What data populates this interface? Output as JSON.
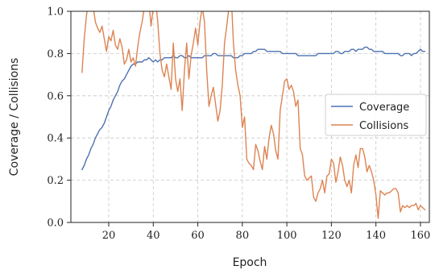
{
  "chart_data": {
    "type": "line",
    "xlabel": "Epoch",
    "ylabel": "Coverage / Collisions",
    "xlim": [
      3,
      164
    ],
    "ylim": [
      0.0,
      1.0
    ],
    "xticks": [
      20,
      40,
      60,
      80,
      100,
      120,
      140,
      160
    ],
    "yticks": [
      0.0,
      0.2,
      0.4,
      0.6,
      0.8,
      1.0
    ],
    "xtick_labels": [
      "20",
      "40",
      "60",
      "80",
      "100",
      "120",
      "140",
      "160"
    ],
    "ytick_labels": [
      "0.0",
      "0.2",
      "0.4",
      "0.6",
      "0.8",
      "1.0"
    ],
    "grid": true,
    "legend_position": "center-right",
    "series": [
      {
        "name": "Coverage",
        "color": "#4c72b0",
        "points": [
          [
            8,
            0.25
          ],
          [
            9,
            0.27
          ],
          [
            10,
            0.3
          ],
          [
            11,
            0.32
          ],
          [
            12,
            0.35
          ],
          [
            13,
            0.37
          ],
          [
            14,
            0.4
          ],
          [
            15,
            0.42
          ],
          [
            16,
            0.44
          ],
          [
            17,
            0.45
          ],
          [
            18,
            0.47
          ],
          [
            19,
            0.5
          ],
          [
            20,
            0.53
          ],
          [
            21,
            0.55
          ],
          [
            22,
            0.58
          ],
          [
            23,
            0.6
          ],
          [
            24,
            0.62
          ],
          [
            25,
            0.65
          ],
          [
            26,
            0.67
          ],
          [
            27,
            0.68
          ],
          [
            28,
            0.7
          ],
          [
            29,
            0.72
          ],
          [
            30,
            0.74
          ],
          [
            31,
            0.75
          ],
          [
            32,
            0.75
          ],
          [
            33,
            0.76
          ],
          [
            34,
            0.76
          ],
          [
            35,
            0.76
          ],
          [
            36,
            0.77
          ],
          [
            37,
            0.77
          ],
          [
            38,
            0.78
          ],
          [
            39,
            0.77
          ],
          [
            40,
            0.76
          ],
          [
            41,
            0.77
          ],
          [
            42,
            0.76
          ],
          [
            43,
            0.77
          ],
          [
            44,
            0.77
          ],
          [
            45,
            0.78
          ],
          [
            46,
            0.78
          ],
          [
            47,
            0.78
          ],
          [
            48,
            0.78
          ],
          [
            49,
            0.79
          ],
          [
            50,
            0.78
          ],
          [
            51,
            0.78
          ],
          [
            52,
            0.79
          ],
          [
            53,
            0.79
          ],
          [
            54,
            0.78
          ],
          [
            55,
            0.78
          ],
          [
            56,
            0.79
          ],
          [
            57,
            0.78
          ],
          [
            58,
            0.78
          ],
          [
            59,
            0.78
          ],
          [
            60,
            0.78
          ],
          [
            61,
            0.78
          ],
          [
            62,
            0.78
          ],
          [
            63,
            0.79
          ],
          [
            64,
            0.79
          ],
          [
            65,
            0.79
          ],
          [
            66,
            0.79
          ],
          [
            67,
            0.8
          ],
          [
            68,
            0.8
          ],
          [
            69,
            0.79
          ],
          [
            70,
            0.79
          ],
          [
            71,
            0.79
          ],
          [
            72,
            0.79
          ],
          [
            73,
            0.79
          ],
          [
            74,
            0.79
          ],
          [
            75,
            0.79
          ],
          [
            76,
            0.78
          ],
          [
            77,
            0.78
          ],
          [
            78,
            0.78
          ],
          [
            79,
            0.79
          ],
          [
            80,
            0.79
          ],
          [
            81,
            0.8
          ],
          [
            82,
            0.8
          ],
          [
            83,
            0.8
          ],
          [
            84,
            0.8
          ],
          [
            85,
            0.81
          ],
          [
            86,
            0.81
          ],
          [
            87,
            0.82
          ],
          [
            88,
            0.82
          ],
          [
            89,
            0.82
          ],
          [
            90,
            0.82
          ],
          [
            91,
            0.81
          ],
          [
            92,
            0.81
          ],
          [
            93,
            0.81
          ],
          [
            94,
            0.81
          ],
          [
            95,
            0.81
          ],
          [
            96,
            0.81
          ],
          [
            97,
            0.81
          ],
          [
            98,
            0.8
          ],
          [
            99,
            0.8
          ],
          [
            100,
            0.8
          ],
          [
            101,
            0.8
          ],
          [
            102,
            0.8
          ],
          [
            103,
            0.8
          ],
          [
            104,
            0.8
          ],
          [
            105,
            0.79
          ],
          [
            106,
            0.79
          ],
          [
            107,
            0.79
          ],
          [
            108,
            0.79
          ],
          [
            109,
            0.79
          ],
          [
            110,
            0.79
          ],
          [
            111,
            0.79
          ],
          [
            112,
            0.79
          ],
          [
            113,
            0.79
          ],
          [
            114,
            0.8
          ],
          [
            115,
            0.8
          ],
          [
            116,
            0.8
          ],
          [
            117,
            0.8
          ],
          [
            118,
            0.8
          ],
          [
            119,
            0.8
          ],
          [
            120,
            0.8
          ],
          [
            121,
            0.8
          ],
          [
            122,
            0.81
          ],
          [
            123,
            0.81
          ],
          [
            124,
            0.8
          ],
          [
            125,
            0.8
          ],
          [
            126,
            0.81
          ],
          [
            127,
            0.81
          ],
          [
            128,
            0.81
          ],
          [
            129,
            0.82
          ],
          [
            130,
            0.82
          ],
          [
            131,
            0.81
          ],
          [
            132,
            0.82
          ],
          [
            133,
            0.82
          ],
          [
            134,
            0.82
          ],
          [
            135,
            0.83
          ],
          [
            136,
            0.83
          ],
          [
            137,
            0.82
          ],
          [
            138,
            0.82
          ],
          [
            139,
            0.81
          ],
          [
            140,
            0.81
          ],
          [
            141,
            0.81
          ],
          [
            142,
            0.81
          ],
          [
            143,
            0.81
          ],
          [
            144,
            0.8
          ],
          [
            145,
            0.8
          ],
          [
            146,
            0.8
          ],
          [
            147,
            0.8
          ],
          [
            148,
            0.8
          ],
          [
            149,
            0.8
          ],
          [
            150,
            0.8
          ],
          [
            151,
            0.79
          ],
          [
            152,
            0.79
          ],
          [
            153,
            0.8
          ],
          [
            154,
            0.8
          ],
          [
            155,
            0.8
          ],
          [
            156,
            0.79
          ],
          [
            157,
            0.8
          ],
          [
            158,
            0.8
          ],
          [
            159,
            0.81
          ],
          [
            160,
            0.82
          ],
          [
            161,
            0.81
          ],
          [
            162,
            0.81
          ]
        ]
      },
      {
        "name": "Collisions",
        "color": "#dd8452",
        "points": [
          [
            8,
            0.71
          ],
          [
            9,
            0.87
          ],
          [
            10,
            0.98
          ],
          [
            11,
            1.05
          ],
          [
            12,
            1.08
          ],
          [
            13,
            1.02
          ],
          [
            14,
            0.95
          ],
          [
            15,
            0.92
          ],
          [
            16,
            0.9
          ],
          [
            17,
            0.93
          ],
          [
            18,
            0.87
          ],
          [
            19,
            0.81
          ],
          [
            20,
            0.88
          ],
          [
            21,
            0.86
          ],
          [
            22,
            0.91
          ],
          [
            23,
            0.84
          ],
          [
            24,
            0.82
          ],
          [
            25,
            0.87
          ],
          [
            26,
            0.83
          ],
          [
            27,
            0.75
          ],
          [
            28,
            0.77
          ],
          [
            29,
            0.82
          ],
          [
            30,
            0.76
          ],
          [
            31,
            0.78
          ],
          [
            32,
            0.74
          ],
          [
            33,
            0.83
          ],
          [
            34,
            0.9
          ],
          [
            35,
            0.95
          ],
          [
            36,
            1.02
          ],
          [
            37,
            1.1
          ],
          [
            38,
            1.05
          ],
          [
            39,
            0.93
          ],
          [
            40,
            1.02
          ],
          [
            41,
            1.06
          ],
          [
            42,
            0.95
          ],
          [
            43,
            0.8
          ],
          [
            44,
            0.72
          ],
          [
            45,
            0.69
          ],
          [
            46,
            0.75
          ],
          [
            47,
            0.69
          ],
          [
            48,
            0.63
          ],
          [
            49,
            0.85
          ],
          [
            50,
            0.68
          ],
          [
            51,
            0.62
          ],
          [
            52,
            0.68
          ],
          [
            53,
            0.53
          ],
          [
            54,
            0.72
          ],
          [
            55,
            0.85
          ],
          [
            56,
            0.68
          ],
          [
            57,
            0.79
          ],
          [
            58,
            0.85
          ],
          [
            59,
            0.92
          ],
          [
            60,
            0.84
          ],
          [
            61,
            0.95
          ],
          [
            62,
            1.02
          ],
          [
            63,
            0.95
          ],
          [
            64,
            0.72
          ],
          [
            65,
            0.55
          ],
          [
            66,
            0.6
          ],
          [
            67,
            0.64
          ],
          [
            68,
            0.56
          ],
          [
            69,
            0.48
          ],
          [
            70,
            0.53
          ],
          [
            71,
            0.65
          ],
          [
            72,
            0.85
          ],
          [
            73,
            0.93
          ],
          [
            74,
            1.02
          ],
          [
            75,
            1.08
          ],
          [
            76,
            0.85
          ],
          [
            77,
            0.72
          ],
          [
            78,
            0.65
          ],
          [
            79,
            0.6
          ],
          [
            80,
            0.45
          ],
          [
            81,
            0.5
          ],
          [
            82,
            0.3
          ],
          [
            83,
            0.28
          ],
          [
            84,
            0.27
          ],
          [
            85,
            0.25
          ],
          [
            86,
            0.37
          ],
          [
            87,
            0.34
          ],
          [
            88,
            0.29
          ],
          [
            89,
            0.25
          ],
          [
            90,
            0.36
          ],
          [
            91,
            0.3
          ],
          [
            92,
            0.4
          ],
          [
            93,
            0.46
          ],
          [
            94,
            0.42
          ],
          [
            95,
            0.34
          ],
          [
            96,
            0.3
          ],
          [
            97,
            0.53
          ],
          [
            98,
            0.6
          ],
          [
            99,
            0.67
          ],
          [
            100,
            0.68
          ],
          [
            101,
            0.63
          ],
          [
            102,
            0.65
          ],
          [
            103,
            0.62
          ],
          [
            104,
            0.55
          ],
          [
            105,
            0.58
          ],
          [
            106,
            0.35
          ],
          [
            107,
            0.32
          ],
          [
            108,
            0.22
          ],
          [
            109,
            0.2
          ],
          [
            110,
            0.21
          ],
          [
            111,
            0.22
          ],
          [
            112,
            0.12
          ],
          [
            113,
            0.1
          ],
          [
            114,
            0.14
          ],
          [
            115,
            0.16
          ],
          [
            116,
            0.2
          ],
          [
            117,
            0.14
          ],
          [
            118,
            0.22
          ],
          [
            119,
            0.23
          ],
          [
            120,
            0.3
          ],
          [
            121,
            0.28
          ],
          [
            122,
            0.19
          ],
          [
            123,
            0.24
          ],
          [
            124,
            0.31
          ],
          [
            125,
            0.27
          ],
          [
            126,
            0.2
          ],
          [
            127,
            0.17
          ],
          [
            128,
            0.2
          ],
          [
            129,
            0.14
          ],
          [
            130,
            0.27
          ],
          [
            131,
            0.32
          ],
          [
            132,
            0.26
          ],
          [
            133,
            0.35
          ],
          [
            134,
            0.35
          ],
          [
            135,
            0.31
          ],
          [
            136,
            0.24
          ],
          [
            137,
            0.27
          ],
          [
            138,
            0.24
          ],
          [
            139,
            0.2
          ],
          [
            140,
            0.13
          ],
          [
            141,
            0.02
          ],
          [
            142,
            0.15
          ],
          [
            143,
            0.14
          ],
          [
            144,
            0.13
          ],
          [
            145,
            0.14
          ],
          [
            146,
            0.14
          ],
          [
            147,
            0.15
          ],
          [
            148,
            0.16
          ],
          [
            149,
            0.16
          ],
          [
            150,
            0.14
          ],
          [
            151,
            0.05
          ],
          [
            152,
            0.08
          ],
          [
            153,
            0.07
          ],
          [
            154,
            0.08
          ],
          [
            155,
            0.07
          ],
          [
            156,
            0.08
          ],
          [
            157,
            0.08
          ],
          [
            158,
            0.09
          ],
          [
            159,
            0.06
          ],
          [
            160,
            0.08
          ],
          [
            161,
            0.07
          ],
          [
            162,
            0.06
          ]
        ]
      }
    ]
  }
}
